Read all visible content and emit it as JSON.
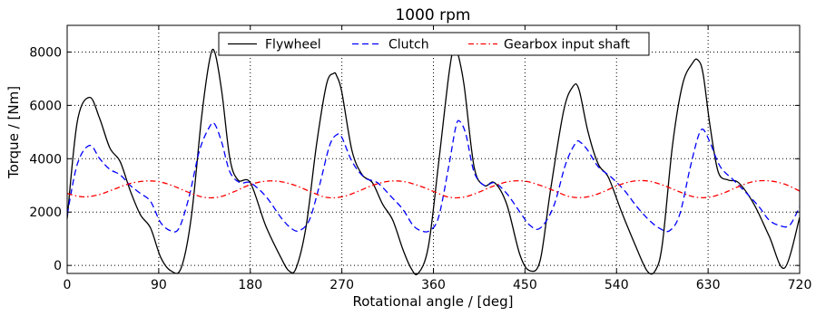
{
  "chart_data": {
    "type": "line",
    "title": "1000 rpm",
    "xlabel": "Rotational angle / [deg]",
    "ylabel": "Torque / [Nm]",
    "xlim": [
      0,
      720
    ],
    "ylim": [
      -300,
      9000
    ],
    "xticks": [
      0,
      90,
      180,
      270,
      360,
      450,
      540,
      630,
      720
    ],
    "yticks": [
      0,
      2000,
      4000,
      6000,
      8000
    ],
    "grid": true,
    "legend_position": "top-center",
    "series": [
      {
        "name": "Flywheel",
        "color": "#000000",
        "style": "solid",
        "x": [
          0,
          10,
          22,
          32,
          42,
          52,
          62,
          72,
          82,
          92,
          102,
          112,
          122,
          132,
          140,
          145,
          152,
          160,
          168,
          180,
          195,
          210,
          218,
          225,
          235,
          245,
          255,
          262,
          265,
          270,
          280,
          290,
          300,
          310,
          320,
          330,
          338,
          345,
          355,
          365,
          375,
          380,
          383,
          390,
          400,
          410,
          420,
          432,
          445,
          455,
          465,
          475,
          488,
          497,
          503,
          512,
          522,
          532,
          545,
          558,
          570,
          578,
          585,
          595,
          605,
          615,
          620,
          625,
          632,
          640,
          650,
          660,
          675,
          690,
          705,
          720
        ],
        "y": [
          1750,
          5400,
          6300,
          5500,
          4400,
          3900,
          2800,
          1900,
          1400,
          300,
          -200,
          -100,
          1800,
          5500,
          7700,
          8000,
          6500,
          4000,
          3200,
          3100,
          1500,
          300,
          -200,
          -100,
          1500,
          4500,
          6800,
          7200,
          7100,
          6500,
          4300,
          3400,
          3100,
          2300,
          1700,
          600,
          -100,
          -300,
          700,
          3800,
          7100,
          8200,
          8100,
          6800,
          3700,
          3000,
          3100,
          2300,
          400,
          -200,
          200,
          2800,
          5800,
          6700,
          6600,
          5000,
          3800,
          3300,
          2000,
          800,
          -200,
          -200,
          800,
          4500,
          6800,
          7600,
          7700,
          7200,
          5200,
          3500,
          3200,
          3100,
          2300,
          1100,
          -100,
          1800
        ]
      },
      {
        "name": "Clutch",
        "color": "#0000ff",
        "style": "dashed",
        "x": [
          0,
          10,
          22,
          32,
          42,
          52,
          62,
          72,
          82,
          92,
          102,
          110,
          120,
          130,
          140,
          145,
          152,
          160,
          170,
          180,
          195,
          210,
          220,
          228,
          238,
          248,
          258,
          265,
          270,
          280,
          292,
          305,
          318,
          330,
          340,
          348,
          356,
          365,
          375,
          382,
          386,
          392,
          400,
          410,
          420,
          432,
          445,
          455,
          465,
          478,
          490,
          500,
          505,
          512,
          522,
          535,
          548,
          560,
          572,
          582,
          592,
          602,
          612,
          620,
          625,
          632,
          642,
          655,
          668,
          680,
          690,
          700,
          710,
          720
        ],
        "y": [
          1900,
          3800,
          4500,
          4000,
          3600,
          3400,
          3000,
          2700,
          2400,
          1600,
          1300,
          1400,
          2600,
          4300,
          5200,
          5300,
          4600,
          3500,
          3100,
          3100,
          2600,
          1800,
          1400,
          1300,
          1700,
          3000,
          4500,
          4900,
          4800,
          3900,
          3300,
          3100,
          2600,
          2100,
          1500,
          1300,
          1300,
          1800,
          3700,
          5200,
          5400,
          4900,
          3500,
          3000,
          3100,
          2700,
          2000,
          1500,
          1400,
          2200,
          3800,
          4600,
          4600,
          4300,
          3700,
          3300,
          2800,
          2200,
          1700,
          1400,
          1300,
          1900,
          3600,
          4800,
          5100,
          4600,
          3700,
          3200,
          2700,
          2200,
          1700,
          1500,
          1500,
          2200
        ]
      },
      {
        "name": "Gearbox input shaft",
        "color": "#ff0000",
        "style": "dashdot",
        "amplitude": 330,
        "period_deg": 120,
        "phase_peak_deg": 87,
        "x": [
          0,
          15,
          30,
          45,
          60,
          75,
          90,
          105,
          120,
          135,
          150,
          165,
          180,
          195,
          210,
          225,
          240,
          255,
          270,
          285,
          300,
          315,
          330,
          345,
          360,
          375,
          390,
          405,
          420,
          435,
          450,
          465,
          480,
          495,
          510,
          525,
          540,
          555,
          570,
          585,
          600,
          615,
          630,
          645,
          660,
          675,
          690,
          705,
          720
        ],
        "y": [
          2700,
          2570,
          2640,
          2840,
          3050,
          3160,
          3140,
          2970,
          2730,
          2550,
          2570,
          2780,
          3030,
          3160,
          3140,
          2990,
          2750,
          2550,
          2570,
          2760,
          3000,
          3150,
          3150,
          3000,
          2780,
          2560,
          2560,
          2750,
          2990,
          3150,
          3160,
          3000,
          2780,
          2570,
          2560,
          2730,
          2980,
          3150,
          3170,
          3020,
          2790,
          2580,
          2550,
          2710,
          2960,
          3150,
          3170,
          3050,
          2790
        ]
      }
    ]
  }
}
